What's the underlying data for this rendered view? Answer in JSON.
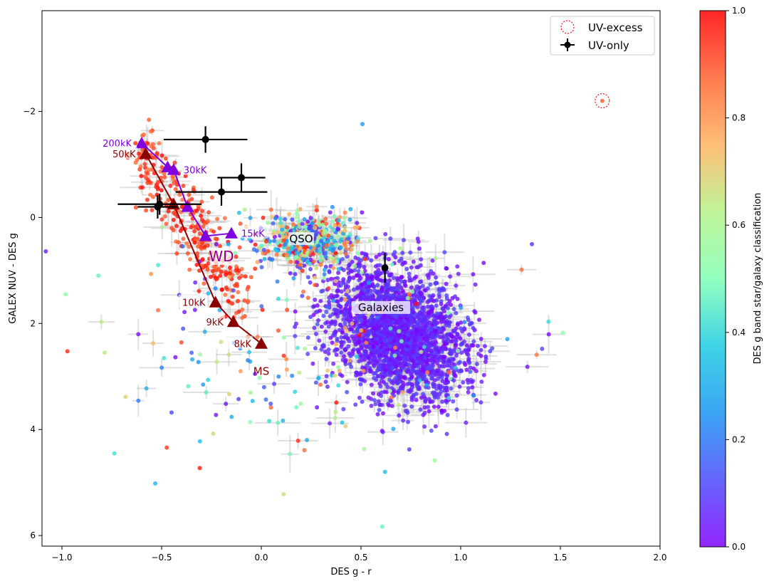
{
  "chart_data": {
    "type": "scatter",
    "xlabel": "DES g - r",
    "ylabel": "GALEX NUV - DES g",
    "xlim": [
      -1.1,
      2.0
    ],
    "ylim": [
      6.2,
      -3.9
    ],
    "y_inverted": true,
    "grid": false,
    "legend_placement": "top-right",
    "xticks": [
      -1.0,
      -0.5,
      0.0,
      0.5,
      1.0,
      1.5,
      2.0
    ],
    "xtick_labels": [
      "−1.0",
      "−0.5",
      "0.0",
      "0.5",
      "1.0",
      "1.5",
      "2.0"
    ],
    "yticks": [
      -2,
      0,
      2,
      4,
      6
    ],
    "ytick_labels": [
      "−2",
      "0",
      "2",
      "4",
      "6"
    ],
    "colorbar": {
      "label": "DES g band star/galaxy classification",
      "range": [
        0.0,
        1.0
      ],
      "ticks": [
        0.0,
        0.2,
        0.4,
        0.6,
        0.8,
        1.0
      ],
      "tick_labels": [
        "0.0",
        "0.2",
        "0.4",
        "0.6",
        "0.8",
        "1.0"
      ],
      "colormap": "rainbow"
    },
    "legend": [
      {
        "label": "UV-excess",
        "marker": "dotted-circle",
        "color": "#e41a1c"
      },
      {
        "label": "UV-only",
        "marker": "errorbar-point",
        "color": "#000000"
      }
    ],
    "series": [
      {
        "name": "WD",
        "color": "#8000e0",
        "points": [
          {
            "x": -0.6,
            "y": -1.4,
            "label": "200kK"
          },
          {
            "x": -0.47,
            "y": -0.95,
            "label": ""
          },
          {
            "x": -0.44,
            "y": -0.9,
            "label": "30kK"
          },
          {
            "x": -0.37,
            "y": -0.2,
            "label": ""
          },
          {
            "x": -0.28,
            "y": 0.35,
            "label": ""
          },
          {
            "x": -0.15,
            "y": 0.3,
            "label": "15kK"
          }
        ]
      },
      {
        "name": "MS",
        "color": "#8b0000",
        "points": [
          {
            "x": -0.58,
            "y": -1.2,
            "label": "50kK"
          },
          {
            "x": -0.44,
            "y": -0.25,
            "label": ""
          },
          {
            "x": -0.23,
            "y": 1.6,
            "label": "10kK"
          },
          {
            "x": -0.14,
            "y": 1.97,
            "label": "9kK"
          },
          {
            "x": 0.0,
            "y": 2.38,
            "label": "8kK"
          }
        ]
      }
    ],
    "uv_only": [
      {
        "x": -0.28,
        "y": -1.47,
        "xerr": 0.21,
        "yerr": 0.25
      },
      {
        "x": -0.1,
        "y": -0.75,
        "xerr": 0.12,
        "yerr": 0.27
      },
      {
        "x": -0.2,
        "y": -0.48,
        "xerr": 0.23,
        "yerr": 0.26
      },
      {
        "x": -0.51,
        "y": -0.25,
        "xerr": 0.21,
        "yerr": 0.2
      },
      {
        "x": -0.52,
        "y": -0.2,
        "xerr": 0.1,
        "yerr": 0.22
      },
      {
        "x": 0.62,
        "y": 0.95,
        "xerr": 0.0,
        "yerr": 0.28
      }
    ],
    "uv_excess": [
      {
        "x": 1.71,
        "y": -2.2
      }
    ],
    "annotations": [
      {
        "text": "WD",
        "x": -0.2,
        "y": 0.8,
        "color": "#8b008b",
        "box": true
      },
      {
        "text": "MS",
        "x": 0.0,
        "y": 2.95,
        "color": "#8b0000",
        "box": false
      },
      {
        "text": "QSO",
        "x": 0.2,
        "y": 0.45,
        "color": "#000000",
        "box": true
      },
      {
        "text": "Galaxies",
        "x": 0.6,
        "y": 1.75,
        "color": "#000000",
        "box": true
      }
    ],
    "populations": [
      {
        "name": "galaxies",
        "center": [
          0.68,
          2.15
        ],
        "spread": [
          0.17,
          0.6
        ],
        "count": 2400,
        "class_range": [
          0.0,
          0.12
        ]
      },
      {
        "name": "qso",
        "center": [
          0.23,
          0.45
        ],
        "spread": [
          0.12,
          0.25
        ],
        "count": 450,
        "class_range": [
          0.0,
          1.0
        ]
      },
      {
        "name": "star-band",
        "center": [
          -0.25,
          0.4
        ],
        "spread": [
          0.15,
          0.7
        ],
        "count": 300,
        "class_range": [
          0.85,
          1.0
        ]
      },
      {
        "name": "scatter",
        "center": [
          0.2,
          2.3
        ],
        "spread": [
          0.5,
          1.3
        ],
        "count": 220,
        "class_range": [
          0.0,
          1.0
        ]
      }
    ]
  }
}
